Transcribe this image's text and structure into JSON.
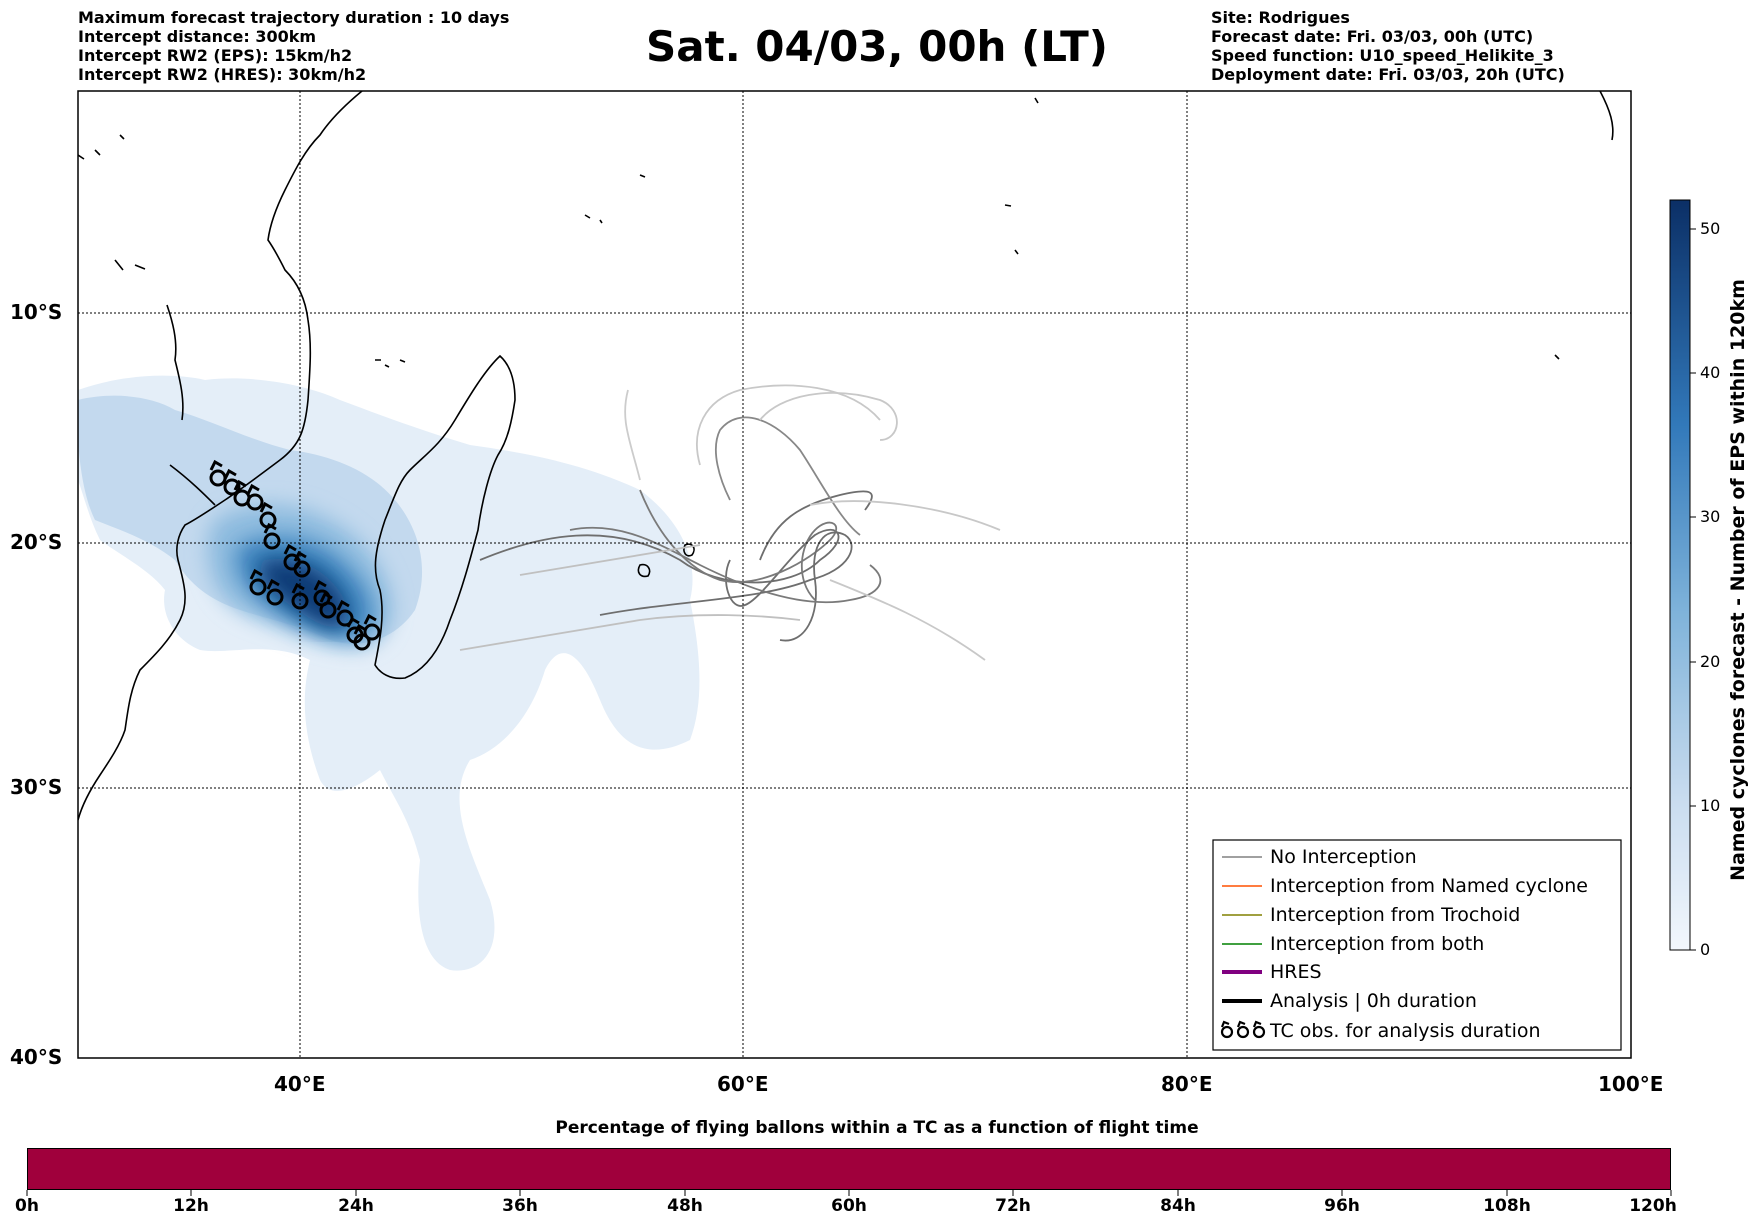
{
  "header_left": [
    "Maximum forecast trajectory duration : 10 days",
    "Intercept distance: 300km",
    "Intercept RW2 (EPS):  15km/h2",
    "Intercept RW2 (HRES): 30km/h2"
  ],
  "title": "Sat. 04/03, 00h (LT)",
  "header_right": [
    "Site: Rodrigues",
    "Forecast date: Fri. 03/03, 00h (UTC)",
    "Speed function: U10_speed_Helikite_3",
    "Deployment date: Fri. 03/03, 20h (UTC)"
  ],
  "map": {
    "lon_range": [
      30,
      100
    ],
    "lat_range": [
      -40,
      0
    ],
    "grid": true,
    "lat_ticks": [
      "10°S",
      "20°S",
      "30°S",
      "40°S"
    ],
    "lon_ticks": [
      "40°E",
      "60°E",
      "80°E",
      "100°E"
    ],
    "colormap_colors": [
      "#e4eef8",
      "#c3d9ee",
      "#8fbcdf",
      "#4b8ec4",
      "#1c64a8",
      "#0b3b76"
    ]
  },
  "legend": {
    "position": "lower-right",
    "items": [
      {
        "label": "No Interception",
        "color": "#808080"
      },
      {
        "label": "Interception from Named cyclone",
        "color": "#ff5000"
      },
      {
        "label": "Interception from Trochoid",
        "color": "#808000"
      },
      {
        "label": "Interception from both",
        "color": "#008000"
      },
      {
        "label": "HRES",
        "color": "#800080"
      },
      {
        "label": "Analysis | 0h duration",
        "color": "#000000"
      },
      {
        "label": "TC obs. for analysis duration",
        "color": "#000000",
        "symbol": "cyclone-icon"
      }
    ]
  },
  "colorbar": {
    "title": "Named cyclones forecast - Number of EPS within 120km",
    "ticks": [
      "0",
      "10",
      "20",
      "30",
      "40",
      "50"
    ],
    "range": [
      0,
      52
    ]
  },
  "flight_time": {
    "title": "Percentage of flying ballons within a TC as a function of flight time",
    "ticks": [
      "0h",
      "12h",
      "24h",
      "36h",
      "48h",
      "60h",
      "72h",
      "84h",
      "96h",
      "108h",
      "120h"
    ],
    "fill_color": "#a0003c"
  }
}
